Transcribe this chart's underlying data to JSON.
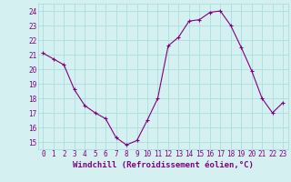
{
  "x": [
    0,
    1,
    2,
    3,
    4,
    5,
    6,
    7,
    8,
    9,
    10,
    11,
    12,
    13,
    14,
    15,
    16,
    17,
    18,
    19,
    20,
    21,
    22,
    23
  ],
  "y": [
    21.1,
    20.7,
    20.3,
    18.6,
    17.5,
    17.0,
    16.6,
    15.3,
    14.8,
    15.1,
    16.5,
    18.0,
    21.6,
    22.2,
    23.3,
    23.4,
    23.9,
    24.0,
    23.0,
    21.5,
    19.9,
    18.0,
    17.0,
    17.7
  ],
  "line_color": "#800080",
  "marker": "+",
  "marker_size": 3,
  "bg_color": "#d4f0f0",
  "grid_color": "#aadddd",
  "xlabel": "Windchill (Refroidissement éolien,°C)",
  "xlabel_color": "#800080",
  "ylabel_ticks": [
    15,
    16,
    17,
    18,
    19,
    20,
    21,
    22,
    23,
    24
  ],
  "xtick_labels": [
    "0",
    "1",
    "2",
    "3",
    "4",
    "5",
    "6",
    "7",
    "8",
    "9",
    "10",
    "11",
    "12",
    "13",
    "14",
    "15",
    "16",
    "17",
    "18",
    "19",
    "20",
    "21",
    "22",
    "23"
  ],
  "ylim": [
    14.5,
    24.5
  ],
  "xlim": [
    -0.5,
    23.5
  ],
  "tick_color": "#800080",
  "tick_fontsize": 5.5,
  "xlabel_fontsize": 6.5,
  "linewidth": 0.8
}
